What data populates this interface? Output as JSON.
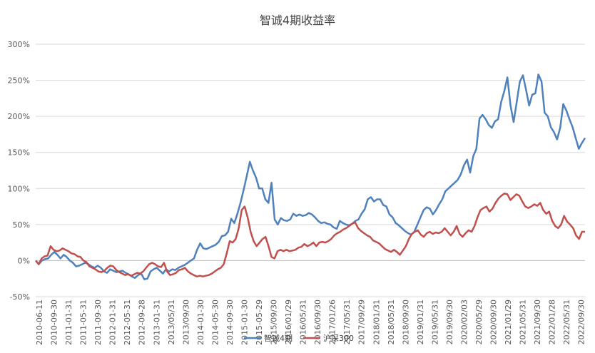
{
  "chart_data": {
    "type": "line",
    "title": "智诚4期收益率",
    "xlabel": "",
    "ylabel": "",
    "ylim": [
      -50,
      300
    ],
    "y_ticks": [
      "300%",
      "250%",
      "200%",
      "150%",
      "100%",
      "50%",
      "0%",
      "-50%"
    ],
    "y_tick_values": [
      300,
      250,
      200,
      150,
      100,
      50,
      0,
      -50
    ],
    "grid": true,
    "legend_position": "bottom",
    "x_tick_labels": [
      "2010-06-11",
      "2010-09-30",
      "2011-01-31",
      "2011-05-31",
      "2011-09-30",
      "2012-01-31",
      "2012-05-31",
      "2012-09-28",
      "2013-01-31",
      "2013/05/31",
      "2013/09/30",
      "2014-01-30",
      "2014-05-30",
      "2014-09-30",
      "2015-01-30",
      "2015-05-29",
      "2015/09/30",
      "2016/01/29",
      "2016/05/31",
      "2016/09/30",
      "2017/01/26",
      "2017/05/31",
      "2017/09/29",
      "2018/01/31",
      "2018/05/31",
      "2018/09/30",
      "2019/01/31",
      "2019/05/31",
      "2019/09/30",
      "2020/02/03",
      "2020/05/29",
      "2020/09/30",
      "2021/01/29",
      "2021/05/31",
      "2021/09/30",
      "2022/01/28",
      "2022/05/31",
      "2022/09/30"
    ],
    "series": [
      {
        "name": "智诚4期",
        "color": "#4f81bd",
        "values": [
          0,
          -5,
          0,
          2,
          3,
          8,
          12,
          8,
          3,
          8,
          5,
          0,
          -3,
          -8,
          -7,
          -5,
          -3,
          -5,
          -8,
          -10,
          -7,
          -10,
          -15,
          -17,
          -12,
          -14,
          -16,
          -15,
          -14,
          -17,
          -19,
          -22,
          -24,
          -20,
          -18,
          -26,
          -25,
          -15,
          -12,
          -10,
          -14,
          -18,
          -12,
          -15,
          -12,
          -13,
          -10,
          -8,
          -6,
          -3,
          0,
          3,
          15,
          24,
          17,
          16,
          18,
          20,
          22,
          26,
          34,
          35,
          40,
          58,
          52,
          65,
          80,
          98,
          117,
          137,
          125,
          115,
          100,
          100,
          85,
          80,
          108,
          57,
          50,
          59,
          56,
          55,
          57,
          65,
          62,
          64,
          62,
          63,
          66,
          64,
          60,
          55,
          52,
          53,
          51,
          50,
          46,
          44,
          55,
          52,
          50,
          49,
          51,
          55,
          57,
          65,
          71,
          85,
          88,
          82,
          85,
          85,
          77,
          75,
          64,
          60,
          52,
          49,
          45,
          41,
          38,
          36,
          40,
          50,
          60,
          70,
          74,
          72,
          64,
          70,
          78,
          85,
          96,
          100,
          104,
          108,
          112,
          120,
          132,
          140,
          122,
          145,
          155,
          197,
          202,
          196,
          188,
          184,
          193,
          196,
          220,
          235,
          254,
          215,
          192,
          220,
          248,
          257,
          237,
          215,
          230,
          232,
          258,
          248,
          205,
          200,
          185,
          178,
          168,
          184,
          217,
          208,
          196,
          185,
          170,
          155,
          163,
          170
        ]
      },
      {
        "name": "沪深300",
        "color": "#c0504d",
        "values": [
          0,
          -5,
          3,
          6,
          7,
          20,
          15,
          13,
          14,
          17,
          15,
          13,
          10,
          9,
          6,
          5,
          0,
          -2,
          -8,
          -10,
          -12,
          -15,
          -16,
          -14,
          -10,
          -7,
          -8,
          -13,
          -16,
          -18,
          -20,
          -19,
          -21,
          -19,
          -17,
          -18,
          -15,
          -10,
          -5,
          -3,
          -5,
          -8,
          -9,
          -3,
          -15,
          -20,
          -19,
          -17,
          -13,
          -12,
          -10,
          -15,
          -18,
          -20,
          -22,
          -21,
          -22,
          -21,
          -20,
          -18,
          -15,
          -12,
          -10,
          -5,
          10,
          27,
          25,
          30,
          45,
          70,
          75,
          60,
          40,
          27,
          20,
          25,
          30,
          33,
          20,
          5,
          3,
          13,
          15,
          13,
          15,
          13,
          14,
          15,
          18,
          19,
          23,
          20,
          22,
          25,
          20,
          25,
          26,
          25,
          27,
          30,
          35,
          38,
          40,
          43,
          45,
          48,
          51,
          53,
          45,
          41,
          38,
          35,
          33,
          28,
          26,
          24,
          20,
          16,
          14,
          12,
          15,
          12,
          8,
          14,
          20,
          30,
          37,
          40,
          42,
          36,
          33,
          38,
          40,
          37,
          39,
          38,
          40,
          45,
          40,
          35,
          40,
          48,
          37,
          33,
          38,
          42,
          40,
          48,
          60,
          70,
          73,
          75,
          68,
          72,
          80,
          86,
          90,
          93,
          92,
          84,
          88,
          92,
          90,
          82,
          75,
          73,
          75,
          78,
          76,
          80,
          70,
          65,
          68,
          55,
          48,
          45,
          50,
          62,
          54,
          50,
          45,
          35,
          30,
          40,
          40
        ]
      }
    ]
  }
}
